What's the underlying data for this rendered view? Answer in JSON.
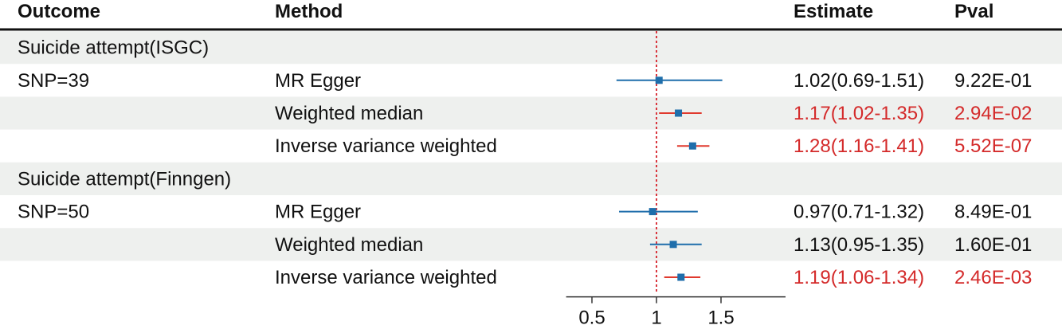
{
  "headers": {
    "outcome": "Outcome",
    "method": "Method",
    "estimate": "Estimate",
    "pval": "Pval"
  },
  "colors": {
    "point": "#1f6eab",
    "ci_default": "#1f6eab",
    "ci_significant": "#e03a2e",
    "text_significant": "#d42a2a",
    "stripe": "#eef0ee",
    "null_line": "#d9363e"
  },
  "chart_data": {
    "type": "forest",
    "null_value": 1,
    "xlim": [
      0.3,
      2.0
    ],
    "xticks": [
      0.5,
      1,
      1.5
    ],
    "xtick_labels": [
      "0.5",
      "1",
      "1.5"
    ],
    "groups": [
      {
        "outcome": "Suicide attempt(ISGC)",
        "snp": "SNP=39",
        "rows": [
          {
            "method": "MR Egger",
            "or": 1.02,
            "lower": 0.69,
            "upper": 1.51,
            "estimate": "1.02(0.69-1.51)",
            "pval": "9.22E-01",
            "significant": false
          },
          {
            "method": "Weighted median",
            "or": 1.17,
            "lower": 1.02,
            "upper": 1.35,
            "estimate": "1.17(1.02-1.35)",
            "pval": "2.94E-02",
            "significant": true
          },
          {
            "method": "Inverse variance weighted",
            "or": 1.28,
            "lower": 1.16,
            "upper": 1.41,
            "estimate": "1.28(1.16-1.41)",
            "pval": "5.52E-07",
            "significant": true
          }
        ]
      },
      {
        "outcome": "Suicide attempt(Finngen)",
        "snp": "SNP=50",
        "rows": [
          {
            "method": "MR Egger",
            "or": 0.97,
            "lower": 0.71,
            "upper": 1.32,
            "estimate": "0.97(0.71-1.32)",
            "pval": "8.49E-01",
            "significant": false
          },
          {
            "method": "Weighted median",
            "or": 1.13,
            "lower": 0.95,
            "upper": 1.35,
            "estimate": "1.13(0.95-1.35)",
            "pval": "1.60E-01",
            "significant": false
          },
          {
            "method": "Inverse variance weighted",
            "or": 1.19,
            "lower": 1.06,
            "upper": 1.34,
            "estimate": "1.19(1.06-1.34)",
            "pval": "2.46E-03",
            "significant": true
          }
        ]
      }
    ]
  }
}
